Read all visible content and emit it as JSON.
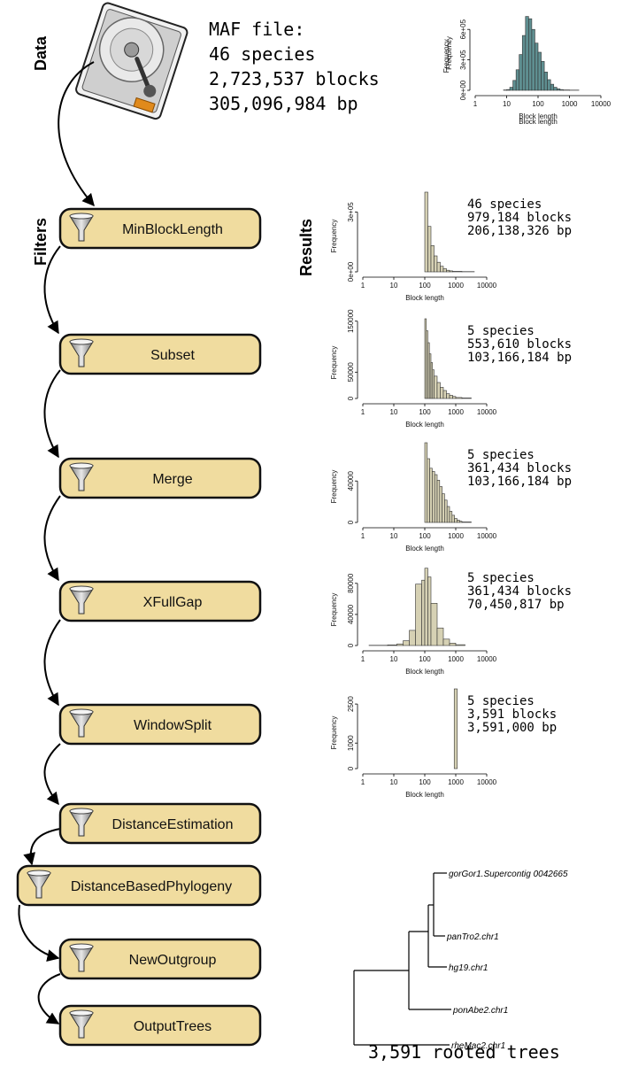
{
  "sections": {
    "data": "Data",
    "filters": "Filters",
    "results": "Results"
  },
  "maf": {
    "lines": [
      "MAF file:",
      "46 species",
      "2,723,537 blocks",
      "305,096,984 bp"
    ]
  },
  "data_hist": {
    "ylabel": "Frequency",
    "xlabel": "Block length",
    "yticks": [
      "0e+00",
      "3e+05",
      "6e+05"
    ],
    "xticks": [
      "1",
      "10",
      "100",
      "1000",
      "10000"
    ],
    "color": "#5f8f91"
  },
  "filters": [
    {
      "label": "MinBlockLength"
    },
    {
      "label": "Subset"
    },
    {
      "label": "Merge"
    },
    {
      "label": "XFullGap"
    },
    {
      "label": "WindowSplit"
    },
    {
      "label": "DistanceEstimation"
    },
    {
      "label": "DistanceBasedPhylogeny"
    },
    {
      "label": "NewOutgroup"
    },
    {
      "label": "OutputTrees"
    }
  ],
  "results": [
    {
      "yticks": [
        "0e+00",
        "3e+05"
      ],
      "xticks": [
        "1",
        "10",
        "100",
        "1000",
        "10000"
      ],
      "ylabel": "Frequency",
      "xlabel": "Block length",
      "summary": [
        "46 species",
        "979,184 blocks",
        "206,138,326 bp"
      ]
    },
    {
      "yticks": [
        "0",
        "50000",
        "150000"
      ],
      "xticks": [
        "1",
        "10",
        "100",
        "1000",
        "10000"
      ],
      "ylabel": "Frequency",
      "xlabel": "Block length",
      "summary": [
        "5 species",
        "553,610 blocks",
        "103,166,184 bp"
      ]
    },
    {
      "yticks": [
        "0",
        "40000"
      ],
      "xticks": [
        "1",
        "10",
        "100",
        "1000",
        "10000"
      ],
      "ylabel": "Frequency",
      "xlabel": "Block length",
      "summary": [
        "5 species",
        "361,434 blocks",
        "103,166,184 bp"
      ]
    },
    {
      "yticks": [
        "0",
        "40000",
        "80000"
      ],
      "xticks": [
        "1",
        "10",
        "100",
        "1000",
        "10000"
      ],
      "ylabel": "Frequency",
      "xlabel": "Block length",
      "summary": [
        "5 species",
        "361,434 blocks",
        "70,450,817 bp"
      ]
    },
    {
      "yticks": [
        "0",
        "1000",
        "2500"
      ],
      "xticks": [
        "1",
        "10",
        "100",
        "1000",
        "10000"
      ],
      "ylabel": "Frequency",
      "xlabel": "Block length",
      "summary": [
        "5 species",
        "3,591 blocks",
        "3,591,000 bp"
      ]
    }
  ],
  "tree": {
    "leaves": [
      "gorGor1.Supercontig 0042665",
      "panTro2.chr1",
      "hg19.chr1",
      "ponAbe2.chr1",
      "rheMac2.chr1"
    ],
    "caption": "3,591 rooted trees"
  },
  "colors": {
    "box_fill": "#f0dc9f",
    "result_bar": "#d6d1b4"
  }
}
